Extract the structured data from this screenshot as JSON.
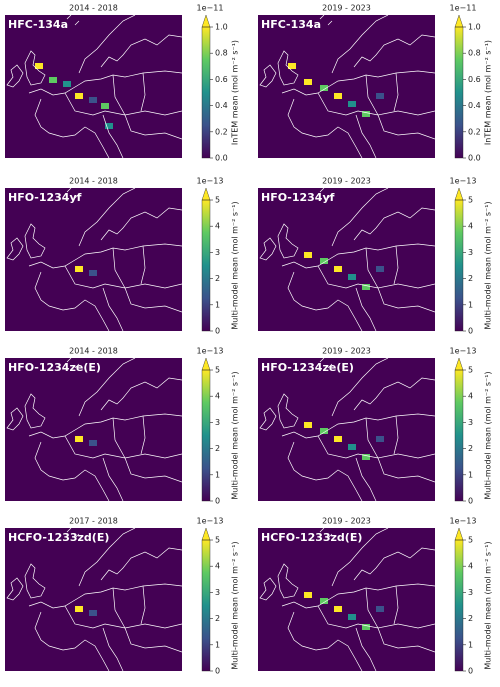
{
  "panels": [
    {
      "period": "2014 - 2018",
      "species": "HFC-134a",
      "colorbar": {
        "label": "InTEM mean (mol m⁻² s⁻¹)",
        "scale": "1e−11",
        "lim": [
          0,
          1
        ],
        "ticks": [
          {
            "value": 0,
            "label": "0.0"
          },
          0.2,
          0.4,
          0.6,
          0.8,
          {
            "value": 1,
            "label": "1.0"
          }
        ]
      }
    },
    {
      "period": "2019 - 2023",
      "species": "HFC-134a",
      "colorbar": {
        "label": "InTEM mean (mol m⁻² s⁻¹)",
        "scale": "1e−11",
        "lim": [
          0,
          1
        ],
        "ticks": [
          {
            "value": 0,
            "label": "0.0"
          },
          0.2,
          0.4,
          0.6,
          0.8,
          {
            "value": 1,
            "label": "1.0"
          }
        ]
      }
    },
    {
      "period": "2014 - 2018",
      "species": "HFO-1234yf",
      "colorbar": {
        "label": "Multi-model mean (mol m⁻² s⁻¹)",
        "scale": "1e−13",
        "lim": [
          0,
          5
        ],
        "ticks": [
          0,
          1,
          2,
          3,
          4,
          5
        ]
      }
    },
    {
      "period": "2019 - 2023",
      "species": "HFO-1234yf",
      "colorbar": {
        "label": "Multi-model mean (mol m⁻² s⁻¹)",
        "scale": "1e−13",
        "lim": [
          0,
          5
        ],
        "ticks": [
          0,
          1,
          2,
          3,
          4,
          5
        ]
      }
    },
    {
      "period": "2014 - 2018",
      "species": "HFO-1234ze(E)",
      "colorbar": {
        "label": "Multi-model mean (mol m⁻² s⁻¹)",
        "scale": "1e−13",
        "lim": [
          0,
          5
        ],
        "ticks": [
          0,
          1,
          2,
          3,
          4,
          5
        ]
      }
    },
    {
      "period": "2019 - 2023",
      "species": "HFO-1234ze(E)",
      "colorbar": {
        "label": "Multi-model mean (mol m⁻² s⁻¹)",
        "scale": "1e−13",
        "lim": [
          0,
          5
        ],
        "ticks": [
          0,
          1,
          2,
          3,
          4,
          5
        ]
      }
    },
    {
      "period": "2017 - 2018",
      "species": "HCFO-1233zd(E)",
      "colorbar": {
        "label": "Multi-model mean (mol m⁻² s⁻¹)",
        "scale": "1e−13",
        "lim": [
          0,
          5
        ],
        "ticks": [
          0,
          1,
          2,
          3,
          4,
          5
        ]
      }
    },
    {
      "period": "2019 - 2023",
      "species": "HCFO-1233zd(E)",
      "colorbar": {
        "label": "Multi-model mean (mol m⁻² s⁻¹)",
        "scale": "1e−13",
        "lim": [
          0,
          5
        ],
        "ticks": [
          0,
          1,
          2,
          3,
          4,
          5
        ]
      }
    }
  ]
}
